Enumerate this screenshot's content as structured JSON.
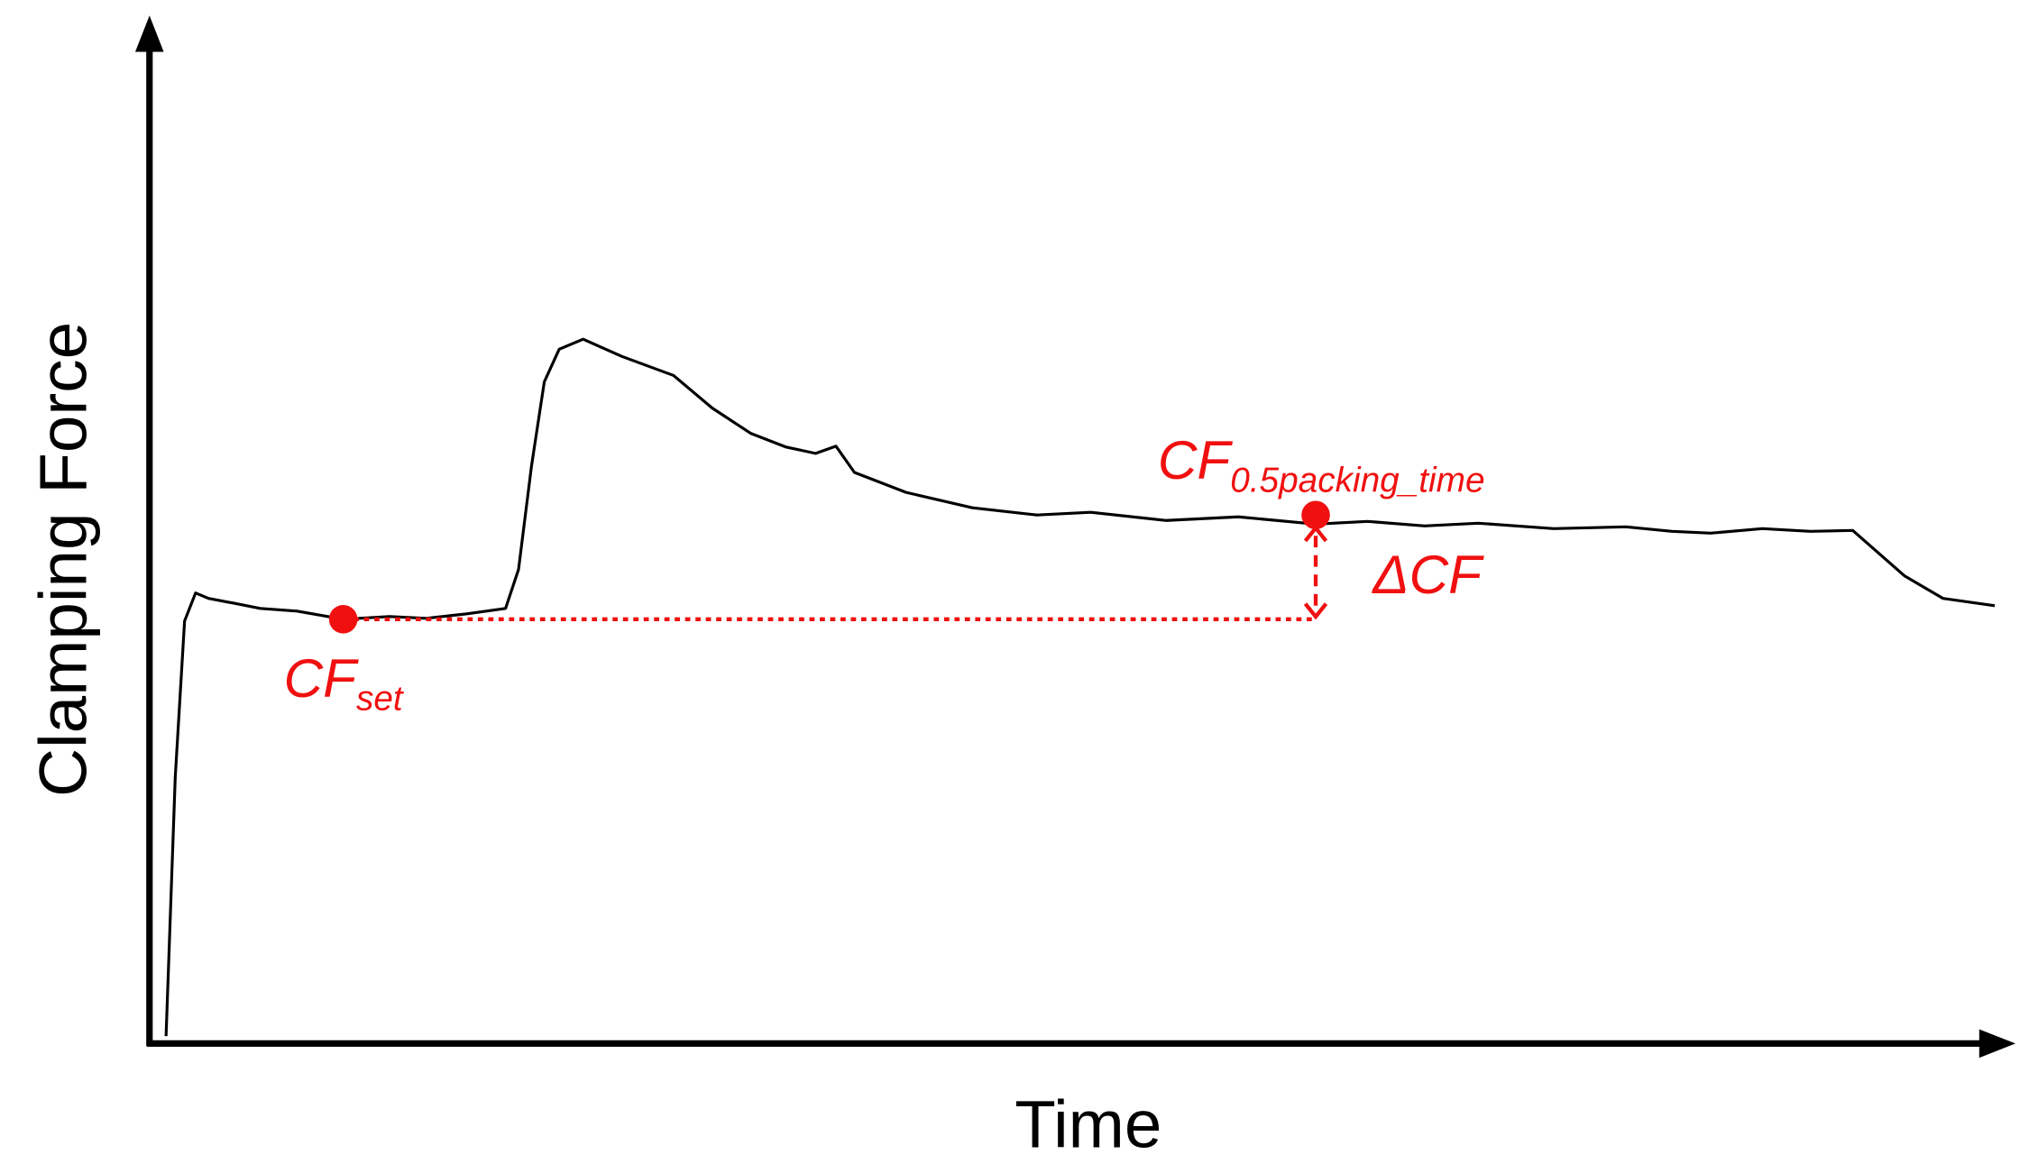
{
  "chart_data": {
    "type": "line",
    "x_label": "Time",
    "y_label": "Clamping Force",
    "xlim": [
      0,
      100
    ],
    "ylim": [
      0,
      100
    ],
    "color": "#000000",
    "x": [
      0.9,
      1.4,
      1.9,
      2.5,
      3.2,
      4.5,
      6,
      8,
      10.5,
      13,
      15,
      17.2,
      19.3,
      20,
      20.7,
      21.4,
      22.2,
      23.5,
      25.6,
      28.4,
      30.5,
      32.6,
      34.5,
      36.1,
      37.2,
      38.2,
      41,
      44.6,
      48.1,
      51,
      55.1,
      59,
      63.2,
      66,
      69.1,
      72,
      76.1,
      80,
      82.5,
      84.6,
      87.4,
      90,
      92.3,
      95.1,
      97.2,
      100
    ],
    "values": [
      1.1,
      29.7,
      46.9,
      50,
      49.4,
      48.9,
      48.3,
      48,
      47.1,
      47.4,
      47.2,
      47.7,
      48.3,
      52.6,
      64,
      73.3,
      76.9,
      78,
      76.1,
      74,
      70.4,
      67.6,
      66.1,
      65.4,
      66.2,
      63.3,
      61.1,
      59.4,
      58.6,
      58.9,
      58,
      58.4,
      57.6,
      57.9,
      57.4,
      57.7,
      57.1,
      57.3,
      56.8,
      56.6,
      57.1,
      56.8,
      56.9,
      51.9,
      49.4,
      48.6
    ],
    "annotation_color": "#f01010",
    "annotations": [
      {
        "text": "CF",
        "subscript": "set",
        "x": 10.5,
        "y": 47.1
      },
      {
        "text": "CF",
        "subscript": "0.5packing_time",
        "x": 63.2,
        "y": 58.6
      }
    ],
    "delta_label": "ΔCF"
  }
}
